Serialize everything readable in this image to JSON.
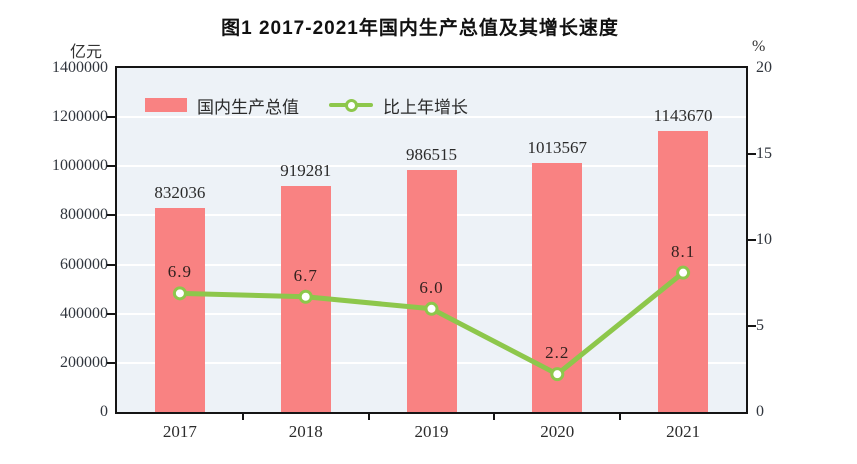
{
  "title": "图1  2017-2021年国内生产总值及其增长速度",
  "axes": {
    "left": {
      "unit": "亿元",
      "ticks": [
        "1400000",
        "1200000",
        "1000000",
        "800000",
        "600000",
        "400000",
        "200000",
        "0"
      ]
    },
    "right": {
      "unit": "%",
      "ticks": [
        "20",
        "15",
        "10",
        "5",
        "0"
      ]
    }
  },
  "legend": {
    "bar_label": "国内生产总值",
    "line_label": "比上年增长"
  },
  "chart_data": {
    "type": "bar+line",
    "title": "图1 2017-2021年国内生产总值及其增长速度",
    "categories": [
      "2017",
      "2018",
      "2019",
      "2020",
      "2021"
    ],
    "series": [
      {
        "name": "国内生产总值",
        "type": "bar",
        "axis": "left",
        "values": [
          832036,
          919281,
          986515,
          1013567,
          1143670
        ],
        "labels": [
          "832036",
          "919281",
          "986515",
          "1013567",
          "1143670"
        ],
        "color": "#f98282"
      },
      {
        "name": "比上年增长",
        "type": "line",
        "axis": "right",
        "values": [
          6.9,
          6.7,
          6.0,
          2.2,
          8.1
        ],
        "labels": [
          "6.9",
          "6.7",
          "6.0",
          "2.2",
          "8.1"
        ],
        "color": "#8dc74b",
        "marker_fill": "#ffffff"
      }
    ],
    "left_ylabel": "亿元",
    "right_ylabel": "%",
    "left_ylim": [
      0,
      1400000
    ],
    "right_ylim": [
      0,
      20
    ],
    "left_tick_step": 200000,
    "right_tick_step": 5,
    "grid": true,
    "grid_divisions": 7,
    "right_tick_divisions": 4,
    "legend_position": "top-left-inside"
  },
  "colors": {
    "bar": "#f98282",
    "line": "#8dc74b",
    "marker_fill": "#ffffff",
    "plot_bg": "#edf2f7",
    "gridline": "#ffffff",
    "axis": "#151515",
    "text": "#2b2b2b"
  }
}
